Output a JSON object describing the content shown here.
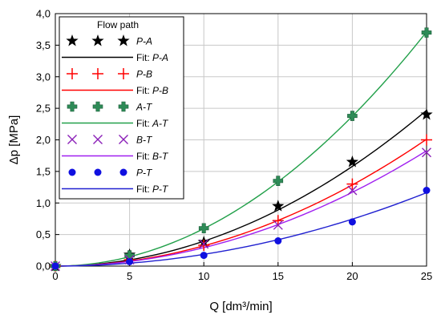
{
  "chart_data": {
    "type": "line",
    "title": "",
    "xlabel": "Q [dm³/min]",
    "ylabel": "Δp [MPa]",
    "xlim": [
      0,
      25
    ],
    "ylim": [
      0,
      4
    ],
    "x_ticks": [
      "0",
      "5",
      "10",
      "15",
      "20",
      "25"
    ],
    "y_ticks": [
      "0,0",
      "0,5",
      "1,0",
      "1,5",
      "2,0",
      "2,5",
      "3,0",
      "3,5",
      "4,0"
    ],
    "grid": true,
    "legend": {
      "title": "Flow path",
      "placement": "top-left",
      "entries": [
        {
          "label": "P-A",
          "kind": "marker",
          "series": 0
        },
        {
          "label": "Fit: P-A",
          "kind": "line",
          "series": 0
        },
        {
          "label": "P-B",
          "kind": "marker",
          "series": 1
        },
        {
          "label": "Fit: P-B",
          "kind": "line",
          "series": 1
        },
        {
          "label": "A-T",
          "kind": "marker",
          "series": 2
        },
        {
          "label": "Fit: A-T",
          "kind": "line",
          "series": 2
        },
        {
          "label": "B-T",
          "kind": "marker",
          "series": 3
        },
        {
          "label": "Fit: B-T",
          "kind": "line",
          "series": 3
        },
        {
          "label": "P-T",
          "kind": "marker",
          "series": 4
        },
        {
          "label": "Fit: P-T",
          "kind": "line",
          "series": 4
        }
      ]
    },
    "x": [
      0,
      5,
      10,
      15,
      20,
      25
    ],
    "series": [
      {
        "name": "P-A",
        "color": "#000000",
        "marker": "star",
        "values": [
          0,
          0.18,
          0.38,
          0.95,
          1.65,
          2.4
        ]
      },
      {
        "name": "P-B",
        "color": "#ff0000",
        "marker": "plus",
        "values": [
          0,
          0.1,
          0.33,
          0.72,
          1.3,
          2.0
        ]
      },
      {
        "name": "A-T",
        "color": "#2e8b57",
        "marker": "thick-plus",
        "values": [
          0,
          0.17,
          0.6,
          1.35,
          2.38,
          3.7
        ]
      },
      {
        "name": "B-T",
        "color": "#8b1fb8",
        "marker": "x",
        "values": [
          0,
          0.1,
          0.35,
          0.65,
          1.2,
          1.8
        ]
      },
      {
        "name": "P-T",
        "color": "#1010e0",
        "marker": "circle",
        "values": [
          0,
          0.07,
          0.17,
          0.4,
          0.7,
          1.2
        ]
      }
    ],
    "fit_colors": [
      "#000000",
      "#ff0000",
      "#22a04a",
      "#a020f0",
      "#2020d0"
    ]
  }
}
